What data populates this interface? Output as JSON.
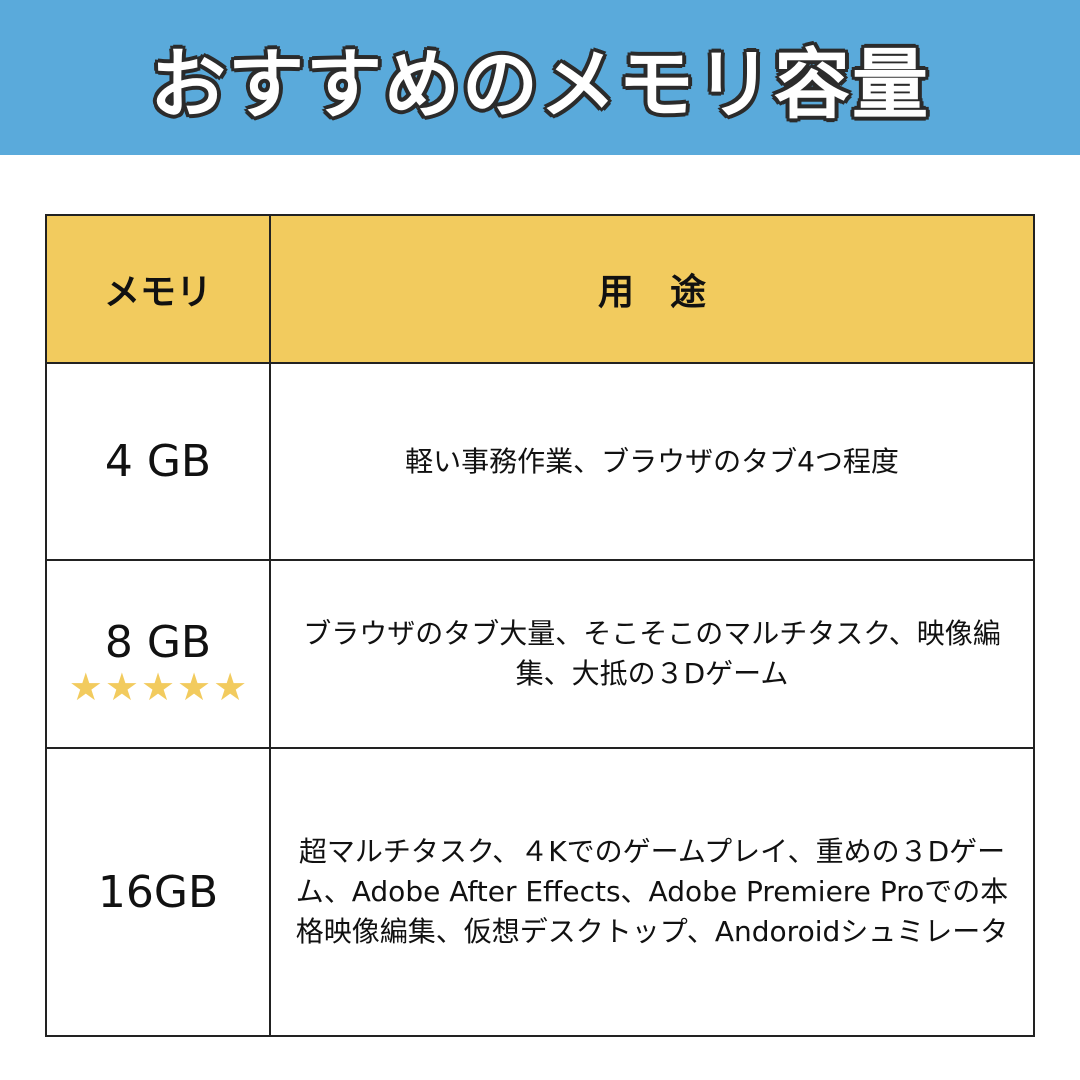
{
  "title": "おすすめのメモリ容量",
  "colors": {
    "banner": "#5aaadb",
    "header": "#f2cb5e",
    "star": "#f2cb5e"
  },
  "table": {
    "headers": [
      "メモリ",
      "用　途"
    ],
    "rows": [
      {
        "memory": "4 GB",
        "usage": "軽い事務作業、ブラウザのタブ4つ程度"
      },
      {
        "memory": "8 GB",
        "usage": "ブラウザのタブ大量、そこそこのマルチタスク、映像編集、大抵の３Dゲーム",
        "stars": 5,
        "star_icon": "star-icon"
      },
      {
        "memory": "16GB",
        "usage": "超マルチタスク、４Kでのゲームプレイ、重めの３Dゲーム、Adobe After Effects、Adobe Premiere Proでの本格映像編集、仮想デスクトップ、Andoroidシュミレータ"
      }
    ]
  }
}
